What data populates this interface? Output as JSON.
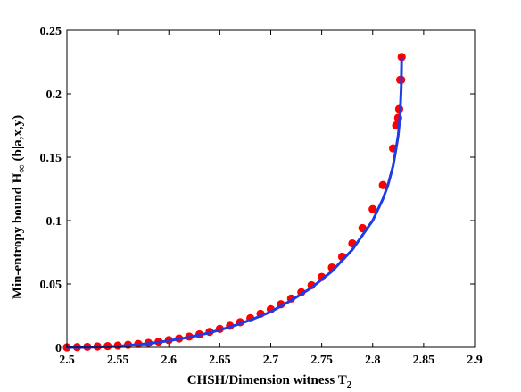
{
  "chart_data": {
    "type": "scatter",
    "title": "",
    "xlabel_main": "CHSH/Dimension witness T",
    "xlabel_sub": "2",
    "ylabel_main": "Min-entropy bound H",
    "ylabel_sub": "∞",
    "ylabel_tail": "(b|a,x,y)",
    "xlim": [
      2.5,
      2.9
    ],
    "ylim": [
      0,
      0.25
    ],
    "xticks": [
      "2.5",
      "2.55",
      "2.6",
      "2.65",
      "2.7",
      "2.75",
      "2.8",
      "2.85",
      "2.9"
    ],
    "yticks": [
      "0",
      "0.05",
      "0.1",
      "0.15",
      "0.2",
      "0.25"
    ],
    "grid": false,
    "colors": {
      "points": "#ff0000",
      "curve": "#1e3ce6"
    },
    "series": [
      {
        "kind": "points",
        "x": [
          2.5,
          2.51,
          2.52,
          2.53,
          2.54,
          2.55,
          2.56,
          2.57,
          2.58,
          2.59,
          2.6,
          2.61,
          2.62,
          2.63,
          2.64,
          2.65,
          2.66,
          2.67,
          2.68,
          2.69,
          2.7,
          2.71,
          2.72,
          2.73,
          2.74,
          2.75,
          2.76,
          2.77,
          2.78,
          2.79,
          2.8,
          2.81,
          2.82,
          2.823,
          2.825,
          2.826,
          2.827,
          2.828,
          2.8284
        ],
        "y": [
          0,
          0.0002,
          0.0004,
          0.0007,
          0.001,
          0.0014,
          0.002,
          0.0027,
          0.0035,
          0.0045,
          0.0057,
          0.007,
          0.0085,
          0.0102,
          0.0122,
          0.0145,
          0.017,
          0.0198,
          0.023,
          0.0265,
          0.03,
          0.034,
          0.0385,
          0.0435,
          0.049,
          0.0555,
          0.063,
          0.0715,
          0.082,
          0.094,
          0.109,
          0.128,
          0.157,
          0.175,
          0.181,
          0.188,
          0.211,
          0.211,
          0.229
        ]
      },
      {
        "kind": "curve",
        "x": [
          2.5,
          2.52,
          2.54,
          2.56,
          2.58,
          2.6,
          2.62,
          2.64,
          2.66,
          2.68,
          2.7,
          2.72,
          2.74,
          2.76,
          2.78,
          2.8,
          2.81,
          2.815,
          2.82,
          2.823,
          2.825,
          2.826,
          2.827,
          2.828,
          2.8284
        ],
        "y": [
          0,
          0,
          0.0005,
          0.0015,
          0.003,
          0.0052,
          0.008,
          0.0115,
          0.016,
          0.0215,
          0.028,
          0.037,
          0.047,
          0.06,
          0.077,
          0.1,
          0.117,
          0.128,
          0.143,
          0.157,
          0.167,
          0.175,
          0.186,
          0.205,
          0.228
        ]
      }
    ]
  }
}
